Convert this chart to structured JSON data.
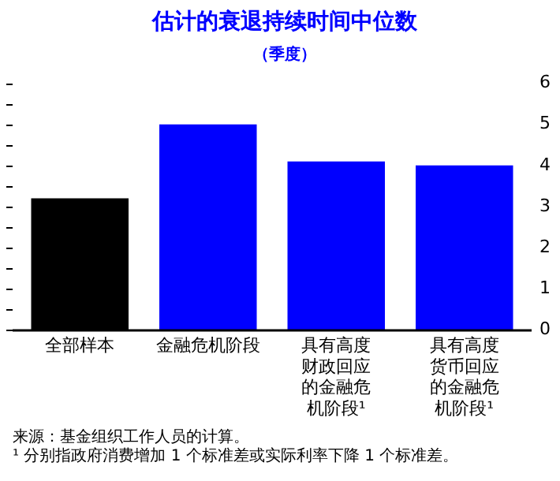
{
  "chart_data": {
    "type": "bar",
    "title": "估计的衰退持续时间中位数",
    "subtitle": "（季度）",
    "categories": [
      "全部样本",
      "金融危机阶段",
      "具有高度财政回应的金融危机阶段¹",
      "具有高度货币回应的金融危机阶段¹"
    ],
    "values": [
      3.2,
      5.0,
      4.1,
      4.0
    ],
    "colors": [
      "#000000",
      "#0000ff",
      "#0000ff",
      "#0000ff"
    ],
    "ylim": [
      0,
      6
    ],
    "yticks": [
      0,
      {
        "value": 0.5,
        "label": null
      },
      1,
      {
        "value": 1.5,
        "label": null
      },
      2,
      {
        "value": 2.5,
        "label": null
      },
      3,
      {
        "value": 3.5,
        "label": null
      },
      4,
      {
        "value": 4.5,
        "label": null
      },
      5,
      {
        "value": 5.5,
        "label": null
      },
      6
    ],
    "grid": false,
    "legend": false,
    "annotations": [
      "来源：基金组织工作人员的计算。",
      "¹ 分别指政府消费增加 1 个标准差或实际利率下降 1 个标准差。"
    ]
  }
}
